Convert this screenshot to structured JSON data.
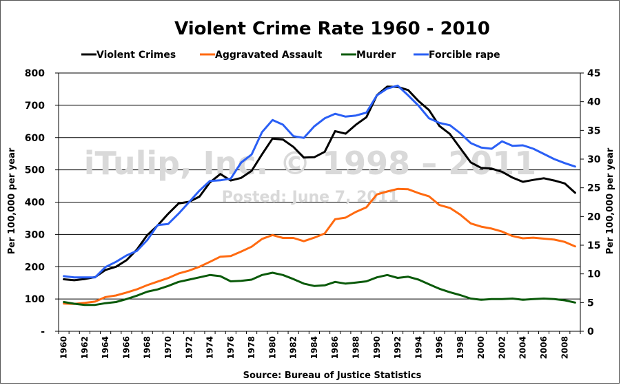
{
  "chart_data": {
    "type": "line",
    "title": "Violent Crime Rate 1960  - 2010",
    "source": "Source: Bureau of Justice Statistics",
    "watermark": "iTulip, Inc. © 1998 – 2011",
    "watermark_posted": "Posted: June 7, 2011",
    "ylabel_left": "Per 100,000 per year",
    "ylabel_right": "Per 100,000 per year",
    "ylim_left": [
      0,
      800
    ],
    "ylim_right": [
      0,
      45
    ],
    "yticks_left": [
      "-",
      "100",
      "200",
      "300",
      "400",
      "500",
      "600",
      "700",
      "800"
    ],
    "yticks_right": [
      "0",
      "5",
      "10",
      "15",
      "20",
      "25",
      "30",
      "35",
      "40",
      "45"
    ],
    "xticks": [
      "1960",
      "1962",
      "1964",
      "1966",
      "1968",
      "1970",
      "1972",
      "1974",
      "1976",
      "1978",
      "1980",
      "1982",
      "1984",
      "1986",
      "1988",
      "1990",
      "1992",
      "1994",
      "1996",
      "1998",
      "2000",
      "2002",
      "2004",
      "2006",
      "2008"
    ],
    "legend_position": "top",
    "grid": "horizontal",
    "x": [
      1960,
      1961,
      1962,
      1963,
      1964,
      1965,
      1966,
      1967,
      1968,
      1969,
      1970,
      1971,
      1972,
      1973,
      1974,
      1975,
      1976,
      1977,
      1978,
      1979,
      1980,
      1981,
      1982,
      1983,
      1984,
      1985,
      1986,
      1987,
      1988,
      1989,
      1990,
      1991,
      1992,
      1993,
      1994,
      1995,
      1996,
      1997,
      1998,
      1999,
      2000,
      2001,
      2002,
      2003,
      2004,
      2005,
      2006,
      2007,
      2008,
      2009
    ],
    "series": [
      {
        "name": "Violent Crimes",
        "color": "#000000",
        "axis": "left",
        "values": [
          161,
          158,
          162,
          168,
          190,
          200,
          220,
          253,
          298,
          328,
          364,
          396,
          401,
          417,
          461,
          487,
          467,
          475,
          497,
          548,
          597,
          594,
          571,
          538,
          539,
          556,
          620,
          612,
          640,
          663,
          731,
          758,
          757,
          747,
          713,
          685,
          636,
          611,
          567,
          523,
          506,
          504,
          494,
          476,
          463,
          469,
          474,
          467,
          458,
          429
        ]
      },
      {
        "name": "Aggravated Assault",
        "color": "#ff6a10",
        "axis": "left",
        "values": [
          86,
          85,
          88,
          92,
          106,
          111,
          120,
          130,
          143,
          154,
          165,
          179,
          188,
          200,
          215,
          231,
          233,
          247,
          262,
          286,
          298,
          289,
          289,
          279,
          290,
          303,
          347,
          352,
          370,
          384,
          424,
          433,
          441,
          440,
          428,
          418,
          391,
          382,
          361,
          334,
          324,
          318,
          309,
          295,
          288,
          290,
          287,
          284,
          277,
          263
        ]
      },
      {
        "name": "Murder",
        "color": "#0a5a0a",
        "axis": "right",
        "values": [
          5.1,
          4.8,
          4.6,
          4.6,
          4.9,
          5.1,
          5.6,
          6.2,
          6.9,
          7.3,
          7.9,
          8.6,
          9.0,
          9.4,
          9.8,
          9.6,
          8.7,
          8.8,
          9.0,
          9.8,
          10.2,
          9.8,
          9.1,
          8.3,
          7.9,
          8.0,
          8.6,
          8.3,
          8.5,
          8.7,
          9.4,
          9.8,
          9.3,
          9.5,
          9.0,
          8.2,
          7.4,
          6.8,
          6.3,
          5.7,
          5.5,
          5.6,
          5.6,
          5.7,
          5.5,
          5.6,
          5.7,
          5.6,
          5.4,
          5.0
        ]
      },
      {
        "name": "Forcible rape",
        "color": "#2a5ff5",
        "axis": "right",
        "values": [
          9.6,
          9.4,
          9.4,
          9.4,
          11.2,
          12.1,
          13.2,
          14.0,
          15.9,
          18.5,
          18.7,
          20.5,
          22.5,
          24.5,
          26.2,
          26.3,
          26.6,
          29.4,
          30.8,
          34.7,
          36.8,
          36.0,
          34.0,
          33.7,
          35.7,
          37.1,
          37.9,
          37.4,
          37.6,
          38.1,
          41.1,
          42.3,
          42.8,
          41.1,
          39.3,
          37.1,
          36.3,
          35.9,
          34.5,
          32.8,
          32.0,
          31.8,
          33.1,
          32.3,
          32.4,
          31.8,
          30.9,
          30.0,
          29.3,
          28.7
        ]
      }
    ]
  }
}
